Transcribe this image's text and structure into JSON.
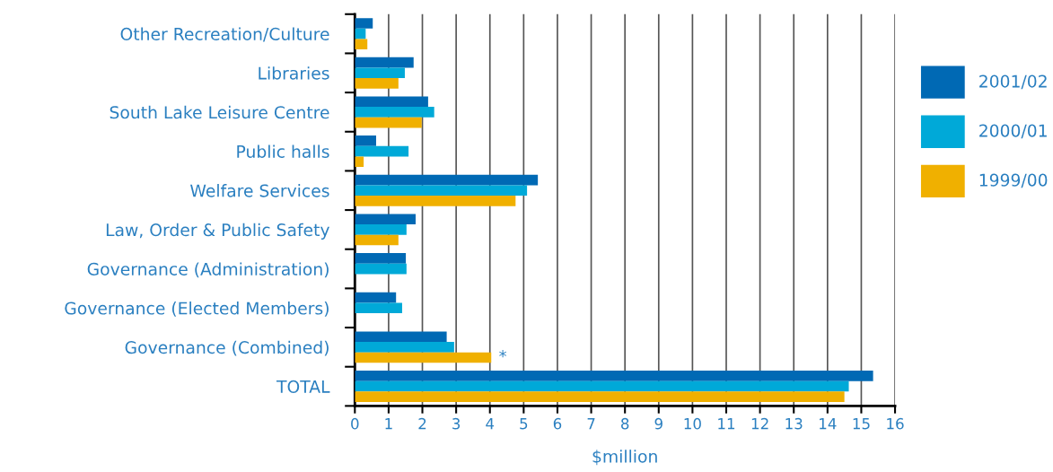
{
  "chart_data": {
    "type": "bar",
    "orientation": "horizontal",
    "xlabel": "$million",
    "categories": [
      "Other Recreation/Culture",
      "Libraries",
      "South Lake Leisure Centre",
      "Public halls",
      "Welfare Services",
      "Law, Order & Public Safety",
      "Governance (Administration)",
      "Governance (Elected Members)",
      "Governance (Combined)",
      "TOTAL"
    ],
    "series": [
      {
        "name": "2001/02",
        "color": "#0069b4",
        "values": [
          0.53,
          1.74,
          2.17,
          0.63,
          5.42,
          1.8,
          1.51,
          1.22,
          2.72,
          15.35
        ]
      },
      {
        "name": "2000/01",
        "color": "#00a9d8",
        "values": [
          0.32,
          1.48,
          2.35,
          1.59,
          5.1,
          1.53,
          1.53,
          1.4,
          2.94,
          14.63
        ]
      },
      {
        "name": "1999/00",
        "color": "#f0b000",
        "values": [
          0.37,
          1.29,
          1.98,
          0.26,
          4.76,
          1.29,
          null,
          null,
          4.04,
          14.5
        ]
      }
    ],
    "xlim": [
      0,
      16
    ],
    "xticks": [
      0,
      1,
      2,
      3,
      4,
      5,
      6,
      7,
      8,
      9,
      10,
      11,
      12,
      13,
      14,
      15,
      16
    ],
    "grid": "x",
    "legend": "right",
    "annotations": [
      {
        "text": "*",
        "x": 4.04,
        "y": "Governance (Combined)"
      }
    ]
  }
}
